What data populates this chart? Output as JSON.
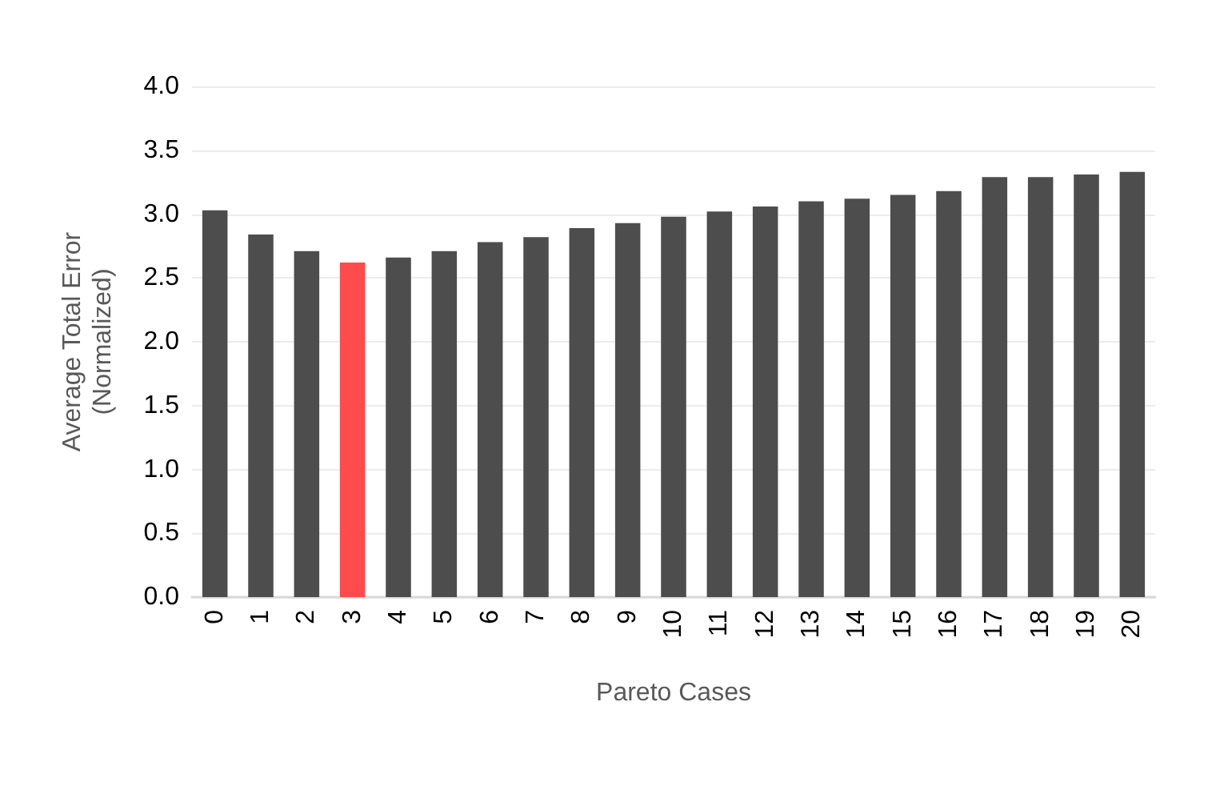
{
  "chart_data": {
    "type": "bar",
    "xlabel": "Pareto Cases",
    "ylabel": "Average Total Error\n(Normalized)",
    "categories": [
      "0",
      "1",
      "2",
      "3",
      "4",
      "5",
      "6",
      "7",
      "8",
      "9",
      "10",
      "11",
      "12",
      "13",
      "14",
      "15",
      "16",
      "17",
      "18",
      "19",
      "20"
    ],
    "values": [
      3.03,
      2.84,
      2.71,
      2.62,
      2.66,
      2.71,
      2.78,
      2.82,
      2.89,
      2.93,
      2.98,
      3.02,
      3.06,
      3.1,
      3.12,
      3.15,
      3.18,
      3.29,
      3.29,
      3.31,
      3.33
    ],
    "colors": [
      "#4d4d4d",
      "#4d4d4d",
      "#4d4d4d",
      "#ff4b4b",
      "#4d4d4d",
      "#4d4d4d",
      "#4d4d4d",
      "#4d4d4d",
      "#4d4d4d",
      "#4d4d4d",
      "#4d4d4d",
      "#4d4d4d",
      "#4d4d4d",
      "#4d4d4d",
      "#4d4d4d",
      "#4d4d4d",
      "#4d4d4d",
      "#4d4d4d",
      "#4d4d4d",
      "#4d4d4d",
      "#4d4d4d"
    ],
    "ylim": [
      0,
      4
    ],
    "yticks": [
      {
        "value": 0,
        "label": "0.0"
      },
      {
        "value": 0.5,
        "label": "0.5"
      },
      {
        "value": 1,
        "label": "1.0"
      },
      {
        "value": 1.5,
        "label": "1.5"
      },
      {
        "value": 2,
        "label": "2.0"
      },
      {
        "value": 2.5,
        "label": "2.5"
      },
      {
        "value": 3,
        "label": "3.0"
      },
      {
        "value": 3.5,
        "label": "3.5"
      },
      {
        "value": 4,
        "label": "4.0"
      }
    ],
    "grid": "y"
  }
}
